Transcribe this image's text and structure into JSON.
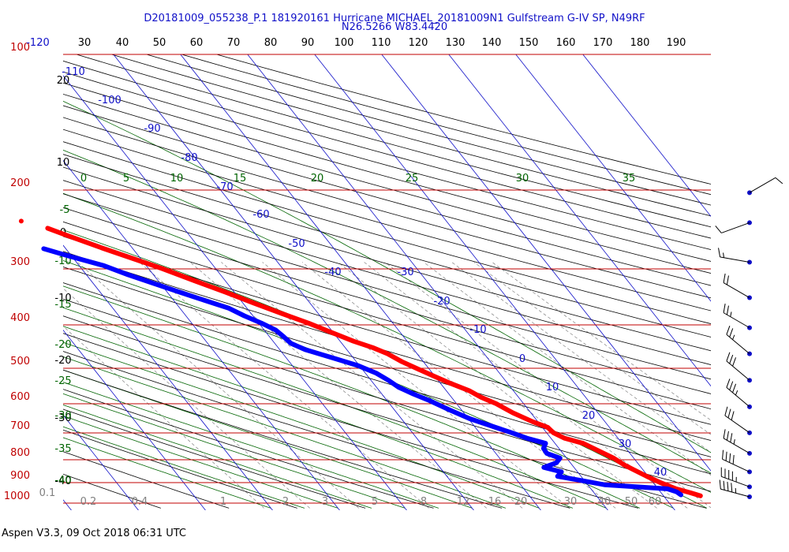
{
  "header": {
    "title_line1": "D20181009_055238_P.1 181920161 Hurricane MICHAEL_20181009N1 Gulfstream G-IV SP, N49RF",
    "title_line2": "N26.5266 W83.4420"
  },
  "footer": {
    "text": "Aspen V3.3, 09 Oct 2018  06:31 UTC"
  },
  "colors": {
    "temperature": "#ff0000",
    "dewpoint": "#0000ff",
    "isobar": "#c00000",
    "isotherm": "#1010c8",
    "dry_adiabat": "#000000",
    "moist_adiabat": "#006400",
    "mixing_ratio": "#808080",
    "wind_barb": "#1010c8"
  },
  "chart_data": {
    "type": "skew-t",
    "pressure_levels_hpa": [
      "100",
      "200",
      "300",
      "400",
      "500",
      "600",
      "700",
      "800",
      "900",
      "1000"
    ],
    "top_axis_labels": [
      "-120",
      "30",
      "40",
      "50",
      "60",
      "70",
      "80",
      "90",
      "100",
      "110",
      "120",
      "130",
      "140",
      "150",
      "160",
      "170",
      "180",
      "190"
    ],
    "isotherm_labels": [
      "-110",
      "-100",
      "-90",
      "-80",
      "-70",
      "-60",
      "-50",
      "-40",
      "-30",
      "-20",
      "-10",
      "0",
      "10",
      "20",
      "30",
      "40"
    ],
    "dry_adiabat_labels": [
      "20",
      "10",
      "0",
      "-10",
      "-20",
      "-30",
      "-40"
    ],
    "moist_adiabat_labels": [
      "0",
      "5",
      "10",
      "15",
      "20",
      "25",
      "30",
      "35",
      "-5",
      "-10",
      "-15",
      "-20",
      "-25",
      "-30",
      "-35",
      "-40"
    ],
    "mixing_ratio_labels": [
      "0.1",
      "0.2",
      "0.4",
      "1",
      "2",
      "3",
      "5",
      "8",
      "12",
      "16",
      "20",
      "30",
      "40",
      "50",
      "60"
    ],
    "temperature_profile": [
      {
        "p": 995,
        "t": 25.5
      },
      {
        "p": 980,
        "t": 24.4
      },
      {
        "p": 960,
        "t": 22.7
      },
      {
        "p": 930,
        "t": 21.1
      },
      {
        "p": 900,
        "t": 19.8
      },
      {
        "p": 870,
        "t": 18.6
      },
      {
        "p": 850,
        "t": 17.8
      },
      {
        "p": 820,
        "t": 17.0
      },
      {
        "p": 790,
        "t": 15.6
      },
      {
        "p": 760,
        "t": 14.2
      },
      {
        "p": 740,
        "t": 12.0
      },
      {
        "p": 720,
        "t": 11.0
      },
      {
        "p": 700,
        "t": 10.8
      },
      {
        "p": 680,
        "t": 9.2
      },
      {
        "p": 650,
        "t": 7.3
      },
      {
        "p": 620,
        "t": 5.9
      },
      {
        "p": 600,
        "t": 4.4
      },
      {
        "p": 580,
        "t": 3.4
      },
      {
        "p": 560,
        "t": 1.6
      },
      {
        "p": 540,
        "t": 0.0
      },
      {
        "p": 520,
        "t": -1.6
      },
      {
        "p": 500,
        "t": -3.2
      },
      {
        "p": 480,
        "t": -4.4
      },
      {
        "p": 465,
        "t": -5.9
      },
      {
        "p": 450,
        "t": -8.0
      },
      {
        "p": 430,
        "t": -10.3
      },
      {
        "p": 410,
        "t": -12.6
      },
      {
        "p": 390,
        "t": -15.5
      },
      {
        "p": 370,
        "t": -18.4
      },
      {
        "p": 350,
        "t": -21.3
      },
      {
        "p": 330,
        "t": -24.6
      },
      {
        "p": 310,
        "t": -28.0
      },
      {
        "p": 300,
        "t": -30.0
      },
      {
        "p": 290,
        "t": -32.1
      },
      {
        "p": 280,
        "t": -34.3
      },
      {
        "p": 270,
        "t": -36.4
      },
      {
        "p": 260,
        "t": -38.6
      },
      {
        "p": 252,
        "t": -40.3
      }
    ],
    "dewpoint_profile": [
      {
        "p": 990,
        "t": 22.7
      },
      {
        "p": 975,
        "t": 22.4
      },
      {
        "p": 960,
        "t": 21.4
      },
      {
        "p": 940,
        "t": 12.5
      },
      {
        "p": 920,
        "t": 9.6
      },
      {
        "p": 900,
        "t": 6.5
      },
      {
        "p": 880,
        "t": 7.6
      },
      {
        "p": 860,
        "t": 5.5
      },
      {
        "p": 840,
        "t": 7.9
      },
      {
        "p": 820,
        "t": 9.0
      },
      {
        "p": 800,
        "t": 7.6
      },
      {
        "p": 780,
        "t": 7.7
      },
      {
        "p": 760,
        "t": 8.6
      },
      {
        "p": 740,
        "t": 6.4
      },
      {
        "p": 720,
        "t": 4.8
      },
      {
        "p": 700,
        "t": 3.0
      },
      {
        "p": 670,
        "t": 0.2
      },
      {
        "p": 640,
        "t": -1.8
      },
      {
        "p": 610,
        "t": -3.7
      },
      {
        "p": 590,
        "t": -5.3
      },
      {
        "p": 570,
        "t": -6.7
      },
      {
        "p": 550,
        "t": -7.4
      },
      {
        "p": 530,
        "t": -8.4
      },
      {
        "p": 510,
        "t": -10.2
      },
      {
        "p": 490,
        "t": -13.1
      },
      {
        "p": 470,
        "t": -16.2
      },
      {
        "p": 455,
        "t": -17.6
      },
      {
        "p": 440,
        "t": -17.9
      },
      {
        "p": 425,
        "t": -18.3
      },
      {
        "p": 410,
        "t": -19.6
      },
      {
        "p": 395,
        "t": -21.3
      },
      {
        "p": 380,
        "t": -22.7
      },
      {
        "p": 365,
        "t": -25.4
      },
      {
        "p": 350,
        "t": -28.1
      },
      {
        "p": 335,
        "t": -30.9
      },
      {
        "p": 320,
        "t": -33.8
      },
      {
        "p": 305,
        "t": -36.4
      },
      {
        "p": 290,
        "t": -40.6
      },
      {
        "p": 280,
        "t": -43.3
      }
    ],
    "isolated_temperature_point": {
      "p": 243,
      "t": -43.4
    },
    "wind_barbs": [
      {
        "p": 210,
        "speed_kt": 10,
        "dir_deg": 60
      },
      {
        "p": 245,
        "speed_kt": 10,
        "dir_deg": 250
      },
      {
        "p": 300,
        "speed_kt": 15,
        "dir_deg": 280
      },
      {
        "p": 360,
        "speed_kt": 20,
        "dir_deg": 300
      },
      {
        "p": 420,
        "speed_kt": 25,
        "dir_deg": 300
      },
      {
        "p": 480,
        "speed_kt": 25,
        "dir_deg": 310
      },
      {
        "p": 550,
        "speed_kt": 30,
        "dir_deg": 310
      },
      {
        "p": 630,
        "speed_kt": 35,
        "dir_deg": 310
      },
      {
        "p": 720,
        "speed_kt": 30,
        "dir_deg": 305
      },
      {
        "p": 800,
        "speed_kt": 35,
        "dir_deg": 300
      },
      {
        "p": 880,
        "speed_kt": 40,
        "dir_deg": 295
      },
      {
        "p": 950,
        "speed_kt": 45,
        "dir_deg": 290
      },
      {
        "p": 1000,
        "speed_kt": 45,
        "dir_deg": 285
      }
    ]
  }
}
